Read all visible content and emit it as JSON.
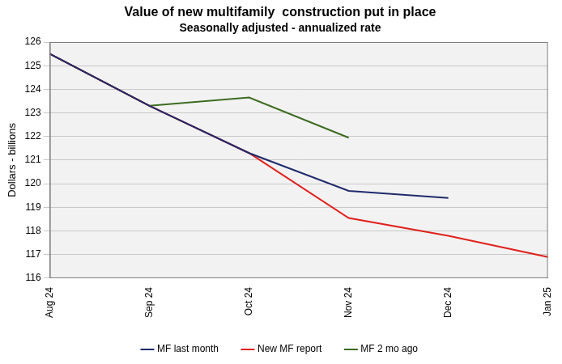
{
  "chart_data": {
    "type": "line",
    "title": "Value of new multifamily  construction put in place",
    "subtitle": "Seasonally adjusted - annualized rate",
    "y_label": "Dollars - billions",
    "categories": [
      "Aug 24",
      "Sep 24",
      "Oct 24",
      "Nov 24",
      "Dec 24",
      "Jan 25"
    ],
    "series": [
      {
        "name": "New MF report",
        "color": "#e0201b",
        "values": [
          125.5,
          123.3,
          121.3,
          118.55,
          117.8,
          116.9
        ]
      },
      {
        "name": "MF last month",
        "color": "#1f2a6b",
        "values": [
          125.5,
          123.3,
          121.3,
          119.7,
          119.4,
          null
        ]
      },
      {
        "name": "MF 2 mo ago",
        "color": "#3c6b1f",
        "values": [
          125.5,
          123.3,
          123.65,
          121.95,
          null,
          null
        ]
      }
    ],
    "ylim": [
      116,
      126
    ],
    "yticks": [
      116,
      117,
      118,
      119,
      120,
      121,
      122,
      123,
      124,
      125,
      126
    ],
    "grid": true,
    "legend": "bottom"
  }
}
